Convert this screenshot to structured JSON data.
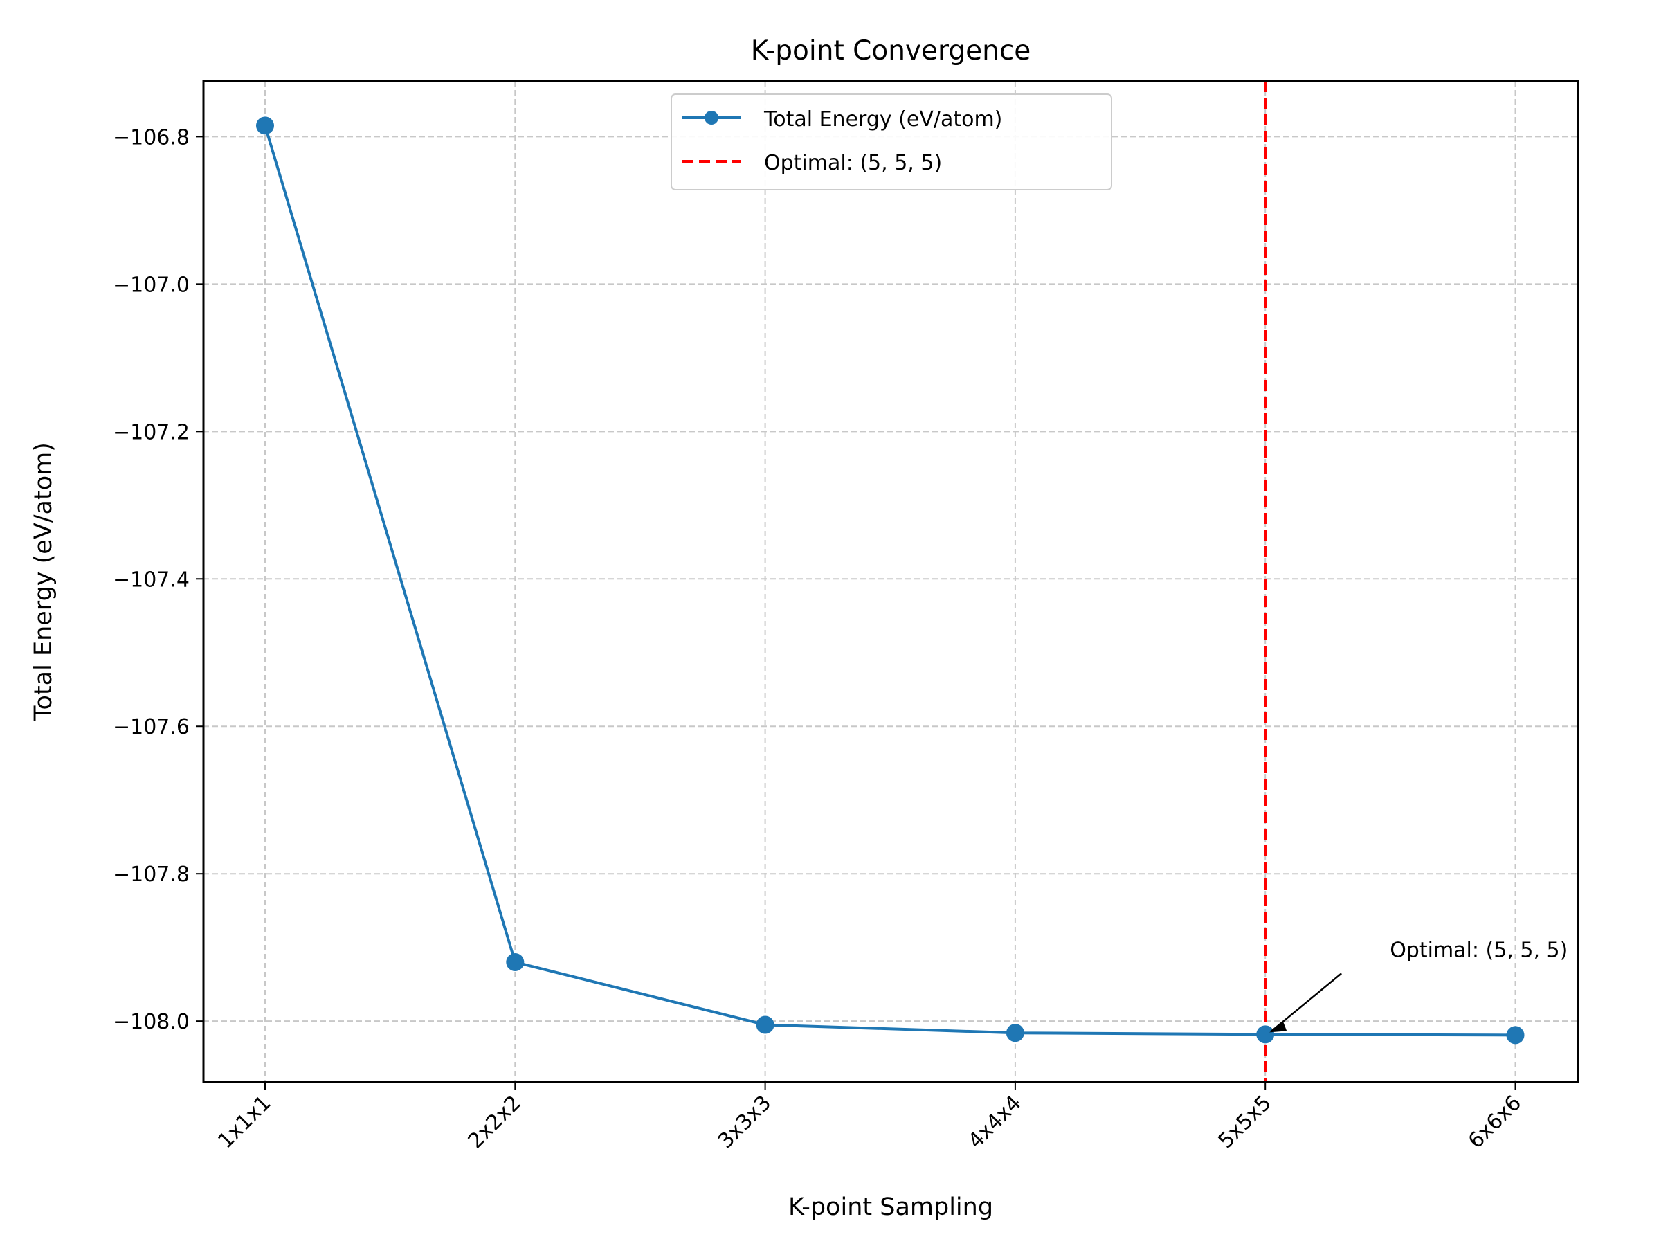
{
  "chart_data": {
    "type": "line",
    "title": "K-point Convergence",
    "xlabel": "K-point Sampling",
    "ylabel": "Total Energy (eV/atom)",
    "categories": [
      "1x1x1",
      "2x2x2",
      "3x3x3",
      "4x4x4",
      "5x5x5",
      "6x6x6"
    ],
    "series": [
      {
        "name": "Total Energy (eV/atom)",
        "values": [
          -106.785,
          -107.92,
          -108.005,
          -108.016,
          -108.018,
          -108.019
        ],
        "color": "#1f77b4"
      }
    ],
    "reference_line": {
      "name": "Optimal: (5, 5, 5)",
      "category": "5x5x5",
      "color": "#ff0000",
      "style": "dashed"
    },
    "annotation": {
      "text": "Optimal: (5, 5, 5)",
      "category": "5x5x5",
      "value": -108.018
    },
    "yticks": [
      -106.8,
      -107.0,
      -107.2,
      -107.4,
      -107.6,
      -107.8,
      -108.0
    ],
    "ytick_labels": [
      "−106.8",
      "−107.0",
      "−107.2",
      "−107.4",
      "−107.6",
      "−107.8",
      "−108.0"
    ],
    "ylim": [
      -108.0825,
      -106.7245
    ],
    "grid": true,
    "legend": "upper center"
  }
}
